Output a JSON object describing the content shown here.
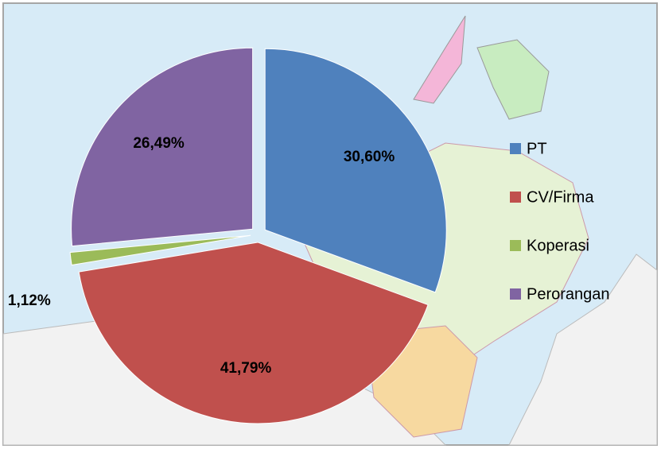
{
  "chart_data": {
    "type": "pie",
    "categories": [
      "PT",
      "CV/Firma",
      "Koperasi",
      "Perorangan"
    ],
    "values": [
      30.6,
      41.79,
      1.12,
      26.49
    ],
    "value_labels": [
      "30,60%",
      "41,79%",
      "1,12%",
      "26,49%"
    ],
    "colors": [
      "#4f81bd",
      "#c0504d",
      "#9bbb59",
      "#8064a2"
    ],
    "legend": "right"
  }
}
